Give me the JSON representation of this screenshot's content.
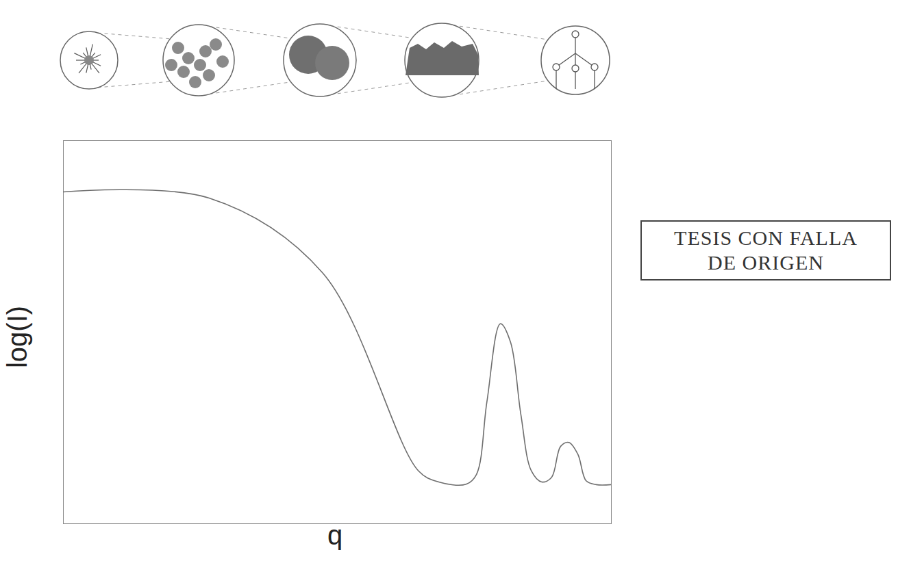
{
  "chart_data": {
    "type": "line",
    "x_label": "q",
    "y_label": "log(I)",
    "x": [
      0,
      26.6,
      47.3,
      64.8,
      68.5,
      73.5,
      75.4,
      77.3,
      79.75,
      81.6,
      83.5,
      85.4,
      87.3,
      89.1,
      90.75,
      92.25,
      93.9,
      95.4,
      97.25,
      100
    ],
    "values": [
      86.6,
      85,
      65.5,
      13.8,
      10.9,
      10.3,
      12.9,
      31.9,
      52.2,
      47.4,
      28.4,
      13.8,
      10.9,
      12.1,
      20.2,
      21.2,
      18.1,
      11.2,
      10.2,
      10.2
    ],
    "color": "#6e6e6e",
    "xlim": [
      0,
      100
    ],
    "ylim": [
      0,
      100
    ],
    "xticks": [],
    "yticks": [],
    "tick_labels": false,
    "grid": false,
    "annotations": [
      {
        "text": "TESIS CON FALLA DE ORIGEN"
      }
    ]
  }
}
